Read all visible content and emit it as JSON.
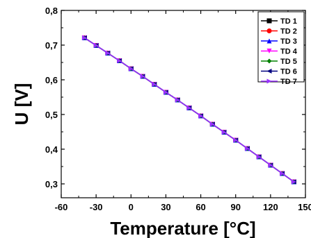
{
  "chart_data": {
    "type": "line",
    "xlabel": "Temperature [°C]",
    "ylabel": "U [V]",
    "xlim": [
      -60,
      150
    ],
    "ylim": [
      0.26,
      0.8
    ],
    "xticks": [
      -60,
      -30,
      0,
      30,
      60,
      90,
      120,
      150
    ],
    "yticks": [
      0.3,
      0.4,
      0.5,
      0.6,
      0.7,
      0.8
    ],
    "ytick_labels": [
      "0,3",
      "0,4",
      "0,5",
      "0,6",
      "0,7",
      "0,8"
    ],
    "grid": false,
    "legend_position": "top-right",
    "x": [
      -40,
      -30,
      -20,
      -10,
      0,
      10,
      20,
      30,
      40,
      50,
      60,
      70,
      80,
      90,
      100,
      110,
      120,
      130,
      140
    ],
    "series": [
      {
        "name": "TD 1",
        "color": "#000000",
        "marker": "square",
        "values": [
          0.721,
          0.699,
          0.677,
          0.655,
          0.632,
          0.61,
          0.587,
          0.564,
          0.542,
          0.519,
          0.496,
          0.472,
          0.449,
          0.426,
          0.402,
          0.378,
          0.354,
          0.33,
          0.306
        ]
      },
      {
        "name": "TD 2",
        "color": "#ff0000",
        "marker": "circle",
        "values": [
          0.721,
          0.699,
          0.677,
          0.655,
          0.632,
          0.61,
          0.587,
          0.564,
          0.542,
          0.519,
          0.496,
          0.472,
          0.449,
          0.426,
          0.402,
          0.378,
          0.354,
          0.33,
          0.306
        ]
      },
      {
        "name": "TD 3",
        "color": "#0000ff",
        "marker": "triangle-up",
        "values": [
          0.721,
          0.699,
          0.677,
          0.655,
          0.632,
          0.61,
          0.587,
          0.564,
          0.542,
          0.519,
          0.496,
          0.472,
          0.449,
          0.426,
          0.402,
          0.378,
          0.354,
          0.33,
          0.306
        ]
      },
      {
        "name": "TD 4",
        "color": "#ff00ff",
        "marker": "triangle-down",
        "values": [
          0.721,
          0.699,
          0.677,
          0.655,
          0.632,
          0.61,
          0.587,
          0.564,
          0.542,
          0.519,
          0.496,
          0.472,
          0.449,
          0.426,
          0.402,
          0.378,
          0.354,
          0.33,
          0.306
        ]
      },
      {
        "name": "TD 5",
        "color": "#008000",
        "marker": "diamond",
        "values": [
          0.721,
          0.699,
          0.677,
          0.655,
          0.632,
          0.61,
          0.587,
          0.564,
          0.542,
          0.519,
          0.496,
          0.472,
          0.449,
          0.426,
          0.402,
          0.378,
          0.354,
          0.33,
          0.306
        ]
      },
      {
        "name": "TD 6",
        "color": "#000080",
        "marker": "triangle-left",
        "values": [
          0.721,
          0.699,
          0.677,
          0.655,
          0.632,
          0.61,
          0.587,
          0.564,
          0.542,
          0.519,
          0.496,
          0.472,
          0.449,
          0.426,
          0.402,
          0.378,
          0.354,
          0.33,
          0.306
        ]
      },
      {
        "name": "TD 7",
        "color": "#9933ff",
        "marker": "triangle-right",
        "values": [
          0.721,
          0.699,
          0.677,
          0.655,
          0.632,
          0.61,
          0.587,
          0.564,
          0.542,
          0.519,
          0.496,
          0.472,
          0.449,
          0.426,
          0.402,
          0.378,
          0.354,
          0.33,
          0.306
        ]
      }
    ]
  }
}
